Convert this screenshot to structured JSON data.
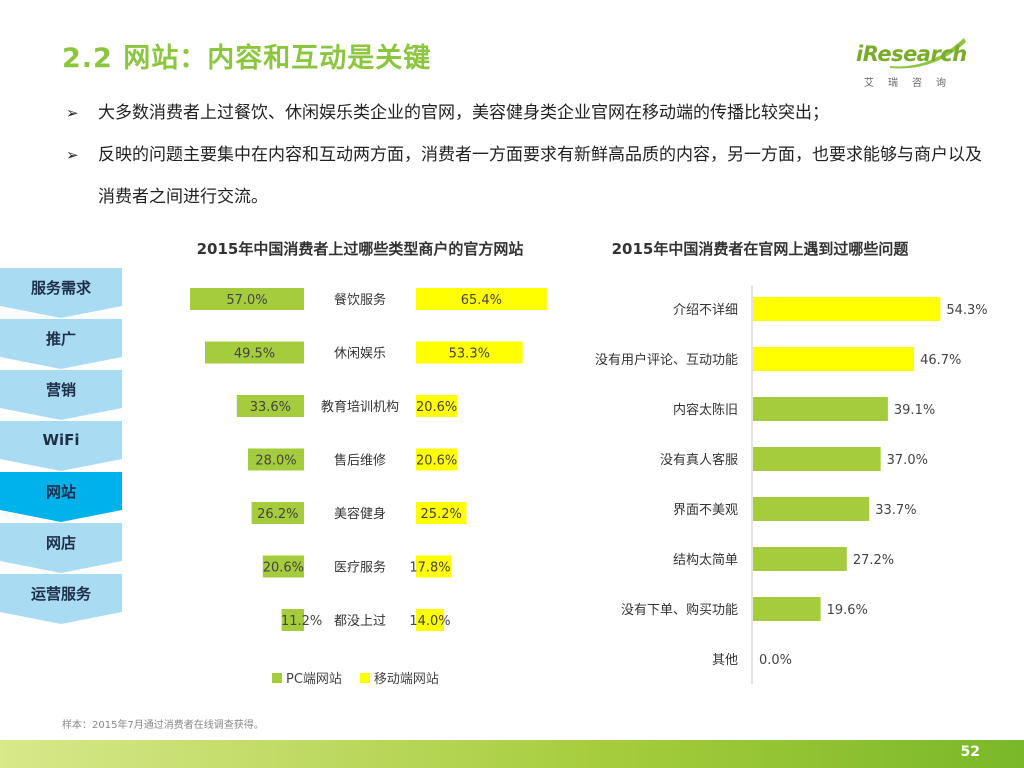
{
  "title": "2.2 网站：内容和互动是关键",
  "logo": {
    "name": "iResearch",
    "subtitle": "艾瑞咨询"
  },
  "bullets": [
    {
      "mark": "➢",
      "text": "大多数消费者上过餐饮、休闲娱乐类企业的官网，美容健身类企业官网在移动端的传播比较突出；"
    },
    {
      "mark": "➢",
      "text": "反映的问题主要集中在内容和互动两方面，消费者一方面要求有新鲜高品质的内容，另一方面，也要求能够与商户以及消费者之间进行交流。"
    }
  ],
  "nav": {
    "items": [
      "服务需求",
      "推广",
      "营销",
      "WiFi",
      "网站",
      "网店",
      "运营服务"
    ],
    "active_index": 4
  },
  "colors": {
    "green": "#a5cc3c",
    "yellow": "#ffff00",
    "brand_green": "#8cc63f",
    "nav_light": "#a9dcf2",
    "nav_active": "#00b2ea"
  },
  "chart_data": [
    {
      "type": "bar",
      "orientation": "butterfly",
      "title": "2015年中国消费者上过哪些类型商户的官方网站",
      "categories": [
        "餐饮服务",
        "休闲娱乐",
        "教育培训机构",
        "售后维修",
        "美容健身",
        "医疗服务",
        "都没上过"
      ],
      "series": [
        {
          "name": "PC端网站",
          "values": [
            57.0,
            49.5,
            33.6,
            28.0,
            26.2,
            20.6,
            11.2
          ],
          "labels": [
            "57.0%",
            "49.5%",
            "33.6%",
            "28.0%",
            "26.2%",
            "20.6%",
            "11.2%"
          ]
        },
        {
          "name": "移动端网站",
          "values": [
            65.4,
            53.3,
            20.6,
            20.6,
            25.2,
            17.8,
            14.0
          ],
          "labels": [
            "65.4%",
            "53.3%",
            "20.6%",
            "20.6%",
            "25.2%",
            "17.8%",
            "14.0%"
          ]
        }
      ],
      "unit": "%",
      "legend": [
        "PC端网站",
        "移动端网站"
      ]
    },
    {
      "type": "bar",
      "orientation": "horizontal",
      "title": "2015年中国消费者在官网上遇到过哪些问题",
      "categories": [
        "介绍不详细",
        "没有用户评论、互动功能",
        "内容太陈旧",
        "没有真人客服",
        "界面不美观",
        "结构太简单",
        "没有下单、购买功能",
        "其他"
      ],
      "values": [
        54.3,
        46.7,
        39.1,
        37.0,
        33.7,
        27.2,
        19.6,
        0.0
      ],
      "labels": [
        "54.3%",
        "46.7%",
        "39.1%",
        "37.0%",
        "33.7%",
        "27.2%",
        "19.6%",
        "0.0%"
      ],
      "unit": "%",
      "highlight_count": 2
    }
  ],
  "footnote": "样本：2015年7月通过消费者在线调查获得。",
  "page_number": "52"
}
